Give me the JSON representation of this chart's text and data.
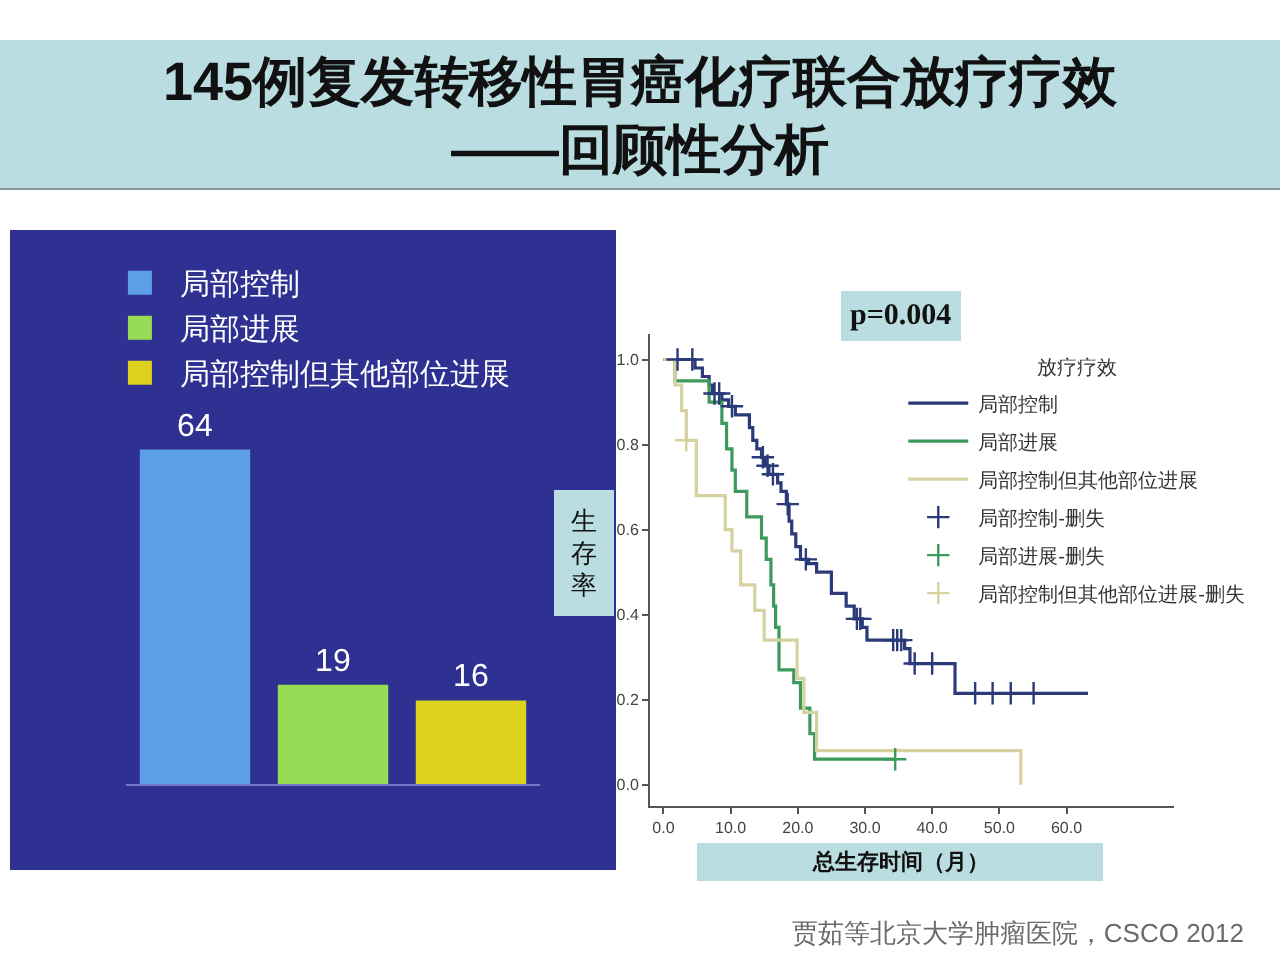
{
  "chart_data": [
    {
      "type": "bar",
      "title": "145例复发转移性胃癌化疗联合放疗疗效\n——回顾性分析",
      "categories": [
        null
      ],
      "series": [
        {
          "name": "局部控制",
          "color": "#5d9ee8",
          "values": [
            64
          ]
        },
        {
          "name": "局部进展",
          "color": "#96dc55",
          "values": [
            19
          ]
        },
        {
          "name": "局部控制但其他部位进展",
          "color": "#dcd21e",
          "values": [
            16
          ]
        }
      ],
      "data_labels": true,
      "legend": "top left",
      "tick_labels": false
    },
    {
      "type": "step",
      "xlabel": "总生存时间（月）",
      "ylabel": "生存率",
      "legend_title": "放疗疗效",
      "annotations": [
        "p=0.004",
        "贾茹等北京大学肿瘤医院，CSCO 2012"
      ],
      "xlim": [
        -2,
        76
      ],
      "xticks": [
        {
          "value": 0,
          "label": "0.0"
        },
        {
          "value": 10,
          "label": "10.0"
        },
        {
          "value": 20,
          "label": "20.0"
        },
        {
          "value": 30,
          "label": "30.0"
        },
        {
          "value": 40,
          "label": "40.0"
        },
        {
          "value": 50,
          "label": "50.0"
        },
        {
          "value": 60,
          "label": "60.0"
        }
      ],
      "ylim": [
        -0.05,
        1.06
      ],
      "yticks": [
        {
          "value": 0,
          "label": "0.0"
        },
        0.2,
        0.4,
        0.6,
        0.8,
        {
          "value": 1,
          "label": "1.0"
        }
      ],
      "legend": "top right",
      "series": [
        {
          "name": "局部控制",
          "color": "#2b3a78",
          "x": [
            0,
            4.7,
            5.8,
            6.8,
            7.3,
            8.7,
            9.7,
            10.7,
            12.8,
            13.3,
            13.9,
            14.6,
            15.2,
            15.7,
            17.0,
            17.5,
            18.3,
            18.7,
            19.1,
            19.7,
            20.4,
            21.6,
            22.8,
            25.0,
            27.2,
            28.4,
            29.6,
            30.3,
            35.9,
            36.7,
            43.4,
            63.2
          ],
          "values": [
            1.0,
            0.98,
            0.96,
            0.94,
            0.92,
            0.905,
            0.89,
            0.87,
            0.84,
            0.81,
            0.79,
            0.77,
            0.75,
            0.73,
            0.71,
            0.69,
            0.66,
            0.62,
            0.59,
            0.56,
            0.53,
            0.52,
            0.5,
            0.45,
            0.42,
            0.39,
            0.37,
            0.34,
            0.32,
            0.285,
            0.215,
            0.215
          ]
        },
        {
          "name": "局部进展",
          "color": "#3c9a5c",
          "x": [
            0,
            1.7,
            6.8,
            8.7,
            9.4,
            10.2,
            10.7,
            12.4,
            14.6,
            15.3,
            16.0,
            16.4,
            16.7,
            17.2,
            19.4,
            20.4,
            21.8,
            22.5,
            34.5
          ],
          "values": [
            1.0,
            0.95,
            0.9,
            0.85,
            0.79,
            0.74,
            0.69,
            0.63,
            0.58,
            0.53,
            0.47,
            0.42,
            0.37,
            0.27,
            0.24,
            0.18,
            0.12,
            0.06,
            0.06
          ]
        },
        {
          "name": "局部控制但其他部位进展",
          "color": "#d6d2a0",
          "x": [
            0,
            1.7,
            2.7,
            3.4,
            4.9,
            9.2,
            10.2,
            11.5,
            13.6,
            15.0,
            19.9,
            20.9,
            22.8,
            53.2
          ],
          "values": [
            1.0,
            0.94,
            0.88,
            0.81,
            0.68,
            0.6,
            0.55,
            0.47,
            0.41,
            0.34,
            0.25,
            0.17,
            0.08,
            0.0
          ]
        },
        {
          "name": "局部控制-删失",
          "type": "scatter",
          "marker": "cross",
          "color": "#2b3a78",
          "x": [
            2.1,
            4.3,
            7.6,
            8.3,
            10.2,
            14.8,
            15.5,
            16.3,
            18.5,
            21.2,
            28.8,
            29.3,
            34.2,
            34.8,
            35.4,
            37.4,
            40.0,
            46.4,
            49.0,
            51.7,
            55.1
          ],
          "values": [
            1.0,
            1.0,
            0.92,
            0.92,
            0.89,
            0.77,
            0.75,
            0.73,
            0.66,
            0.53,
            0.39,
            0.39,
            0.34,
            0.34,
            0.34,
            0.285,
            0.285,
            0.215,
            0.215,
            0.215,
            0.215
          ]
        },
        {
          "name": "局部进展-删失",
          "type": "scatter",
          "marker": "cross",
          "color": "#3c9a5c",
          "x": [
            34.5
          ],
          "values": [
            0.06
          ]
        },
        {
          "name": "局部控制但其他部位进展-删失",
          "type": "scatter",
          "marker": "cross",
          "color": "#d6d2a0",
          "x": [
            3.4
          ],
          "values": [
            0.81
          ]
        }
      ]
    }
  ]
}
